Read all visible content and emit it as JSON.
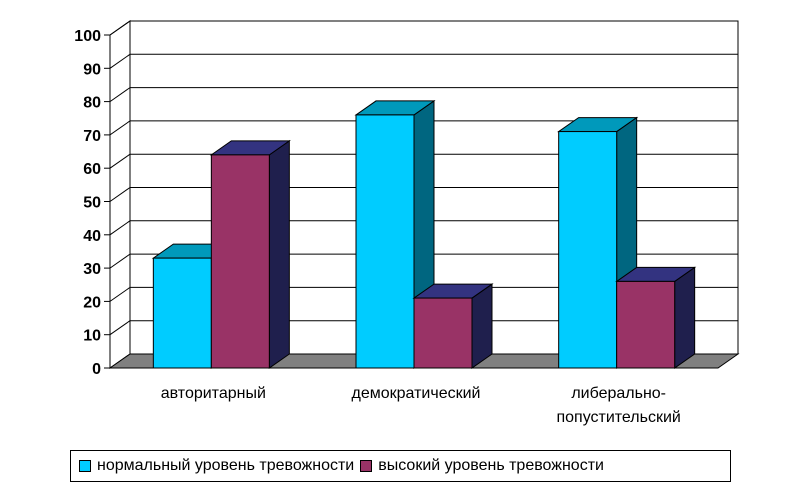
{
  "chart_data": {
    "type": "bar",
    "categories": [
      "авторитарный",
      "демократический",
      "либерально-попустительский"
    ],
    "category_label_lines": [
      [
        "авторитарный"
      ],
      [
        "демократический"
      ],
      [
        "либерально-",
        "попустительский"
      ]
    ],
    "series": [
      {
        "name": "нормальный уровень тревожности",
        "color": "#00ccff",
        "values": [
          33,
          76,
          71
        ]
      },
      {
        "name": "высокий уровень тревожности",
        "color": "#993366",
        "values": [
          64,
          21,
          26
        ]
      }
    ],
    "ylim": [
      0,
      100
    ],
    "yticks": [
      "0",
      "10",
      "20",
      "30",
      "40",
      "50",
      "60",
      "70",
      "80",
      "90",
      "100"
    ],
    "grid": true,
    "three_d": true,
    "legend_position": "bottom"
  }
}
